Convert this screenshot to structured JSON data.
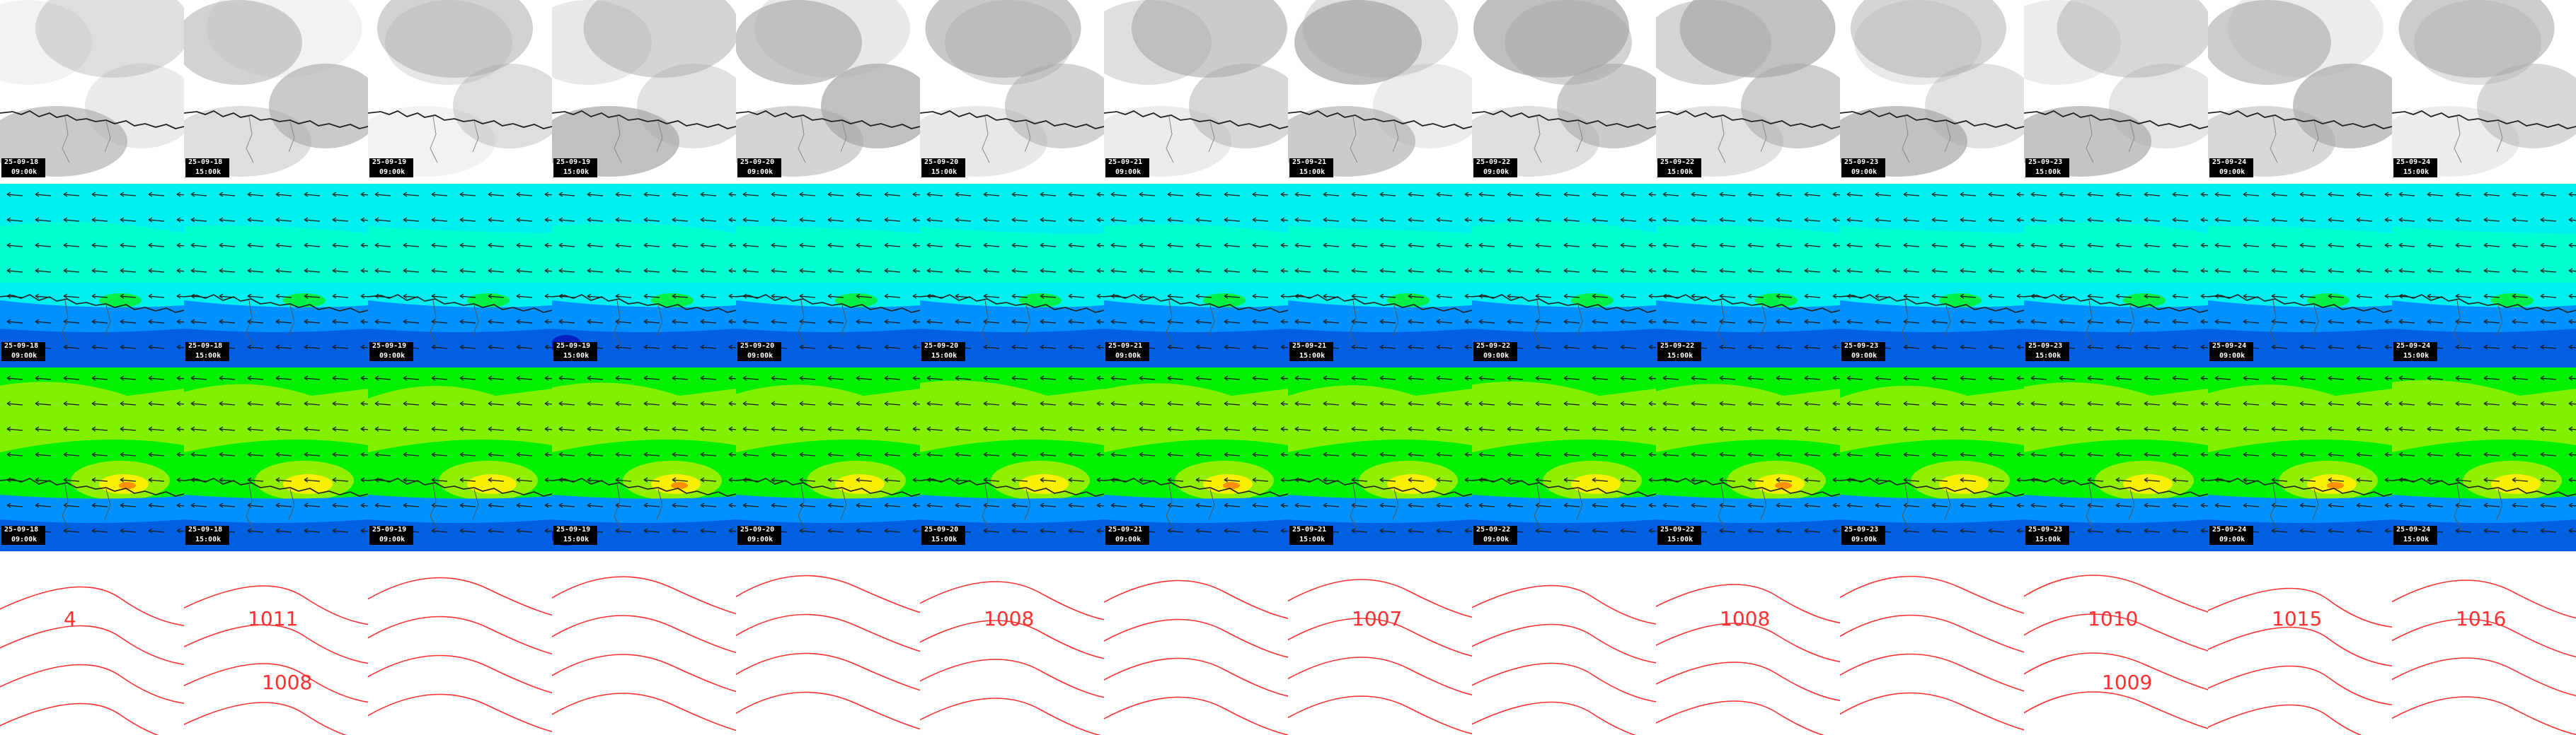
{
  "panels": {
    "stamps": [
      {
        "date": "25-09-18",
        "time": "09:00k"
      },
      {
        "date": "25-09-18",
        "time": "15:00k"
      },
      {
        "date": "25-09-19",
        "time": "09:00k"
      },
      {
        "date": "25-09-19",
        "time": "15:00k"
      },
      {
        "date": "25-09-20",
        "time": "09:00k"
      },
      {
        "date": "25-09-20",
        "time": "15:00k"
      },
      {
        "date": "25-09-21",
        "time": "09:00k"
      },
      {
        "date": "25-09-21",
        "time": "15:00k"
      },
      {
        "date": "25-09-22",
        "time": "09:00k"
      },
      {
        "date": "25-09-22",
        "time": "15:00k"
      },
      {
        "date": "25-09-23",
        "time": "09:00k"
      },
      {
        "date": "25-09-23",
        "time": "15:00k"
      },
      {
        "date": "25-09-24",
        "time": "09:00k"
      },
      {
        "date": "25-09-24",
        "time": "15:00k"
      }
    ],
    "rows": [
      "cloud-cover",
      "wind-temperature-low",
      "wind-temperature-high",
      "pressure-isobars"
    ],
    "isobar_labels": [
      {
        "col": 0,
        "labels": [
          "4"
        ]
      },
      {
        "col": 1,
        "labels": [
          "1011",
          "1008"
        ]
      },
      {
        "col": 5,
        "labels": [
          "1008"
        ]
      },
      {
        "col": 7,
        "labels": [
          "1007"
        ]
      },
      {
        "col": 9,
        "labels": [
          "1008"
        ]
      },
      {
        "col": 11,
        "labels": [
          "1010",
          "1009"
        ]
      },
      {
        "col": 12,
        "labels": [
          "1015"
        ]
      },
      {
        "col": 13,
        "labels": [
          "1016"
        ]
      }
    ]
  },
  "colors": {
    "coast": "#222222",
    "isobar": "#ff3030",
    "cloud_light": "#f2f2f2",
    "cloud_dark": "#a8a8a8",
    "cyan": "#00f0f0",
    "aqua": "#00ffd0",
    "green": "#00f000",
    "lime": "#90f000",
    "yellow": "#f8f000",
    "orange": "#ff9000",
    "blue": "#0090ff",
    "blue_mid": "#0060e0",
    "blue_dark": "#0020c0"
  }
}
